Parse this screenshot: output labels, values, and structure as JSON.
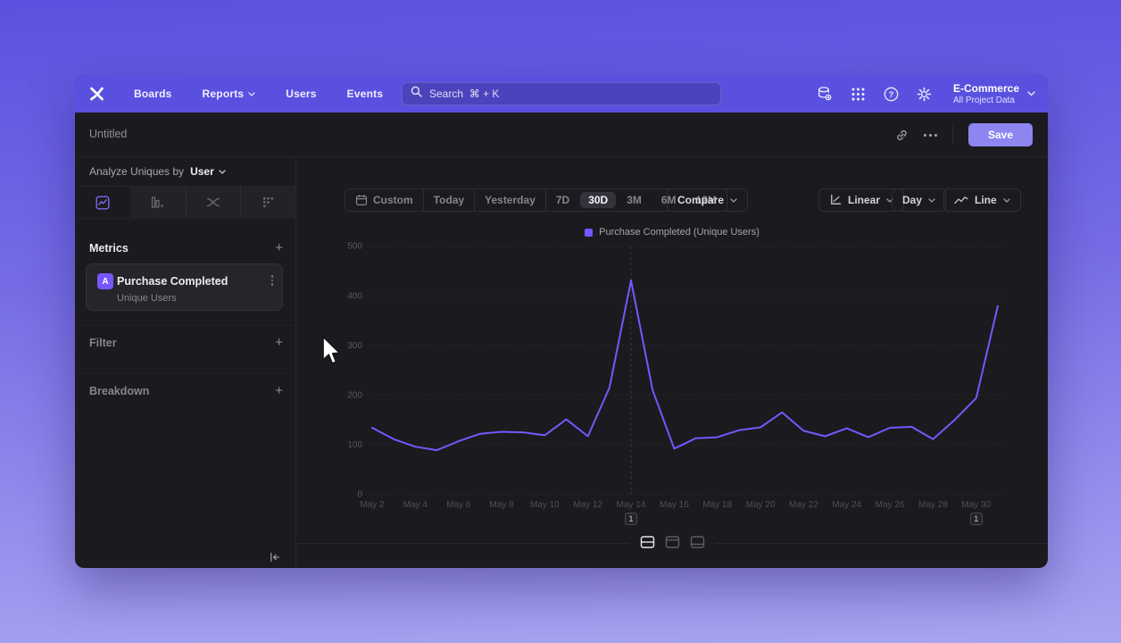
{
  "topnav": {
    "items": [
      {
        "label": "Boards",
        "chevron": false
      },
      {
        "label": "Reports",
        "chevron": true
      },
      {
        "label": "Users",
        "chevron": false
      },
      {
        "label": "Events",
        "chevron": false
      }
    ],
    "search": {
      "placeholder": "Search  ⌘ + K"
    },
    "project": {
      "name": "E-Commerce",
      "scope": "All Project Data"
    }
  },
  "titlebar": {
    "title": "Untitled",
    "save_label": "Save"
  },
  "sidebar": {
    "analyze_prefix": "Analyze Uniques by",
    "analyze_value": "User",
    "add_symbol": "+",
    "sections": {
      "metrics": "Metrics",
      "filter": "Filter",
      "breakdown": "Breakdown"
    },
    "metric_card": {
      "badge": "A",
      "event": "Purchase Completed",
      "measure": "Unique Users"
    }
  },
  "toolbar": {
    "ranges": [
      "Custom",
      "Today",
      "Yesterday",
      "7D",
      "30D",
      "3M",
      "6M",
      "12M"
    ],
    "selected_range": "30D",
    "compare_label": "Compare",
    "scale_label": "Linear",
    "interval_label": "Day",
    "chart_type_label": "Line"
  },
  "chart_data": {
    "type": "line",
    "title": "",
    "legend": [
      {
        "label": "Purchase Completed (Unique Users)",
        "color": "#7856FF"
      }
    ],
    "x": [
      "May 2",
      "May 3",
      "May 4",
      "May 5",
      "May 6",
      "May 7",
      "May 8",
      "May 9",
      "May 10",
      "May 11",
      "May 12",
      "May 13",
      "May 14",
      "May 15",
      "May 16",
      "May 17",
      "May 18",
      "May 19",
      "May 20",
      "May 21",
      "May 22",
      "May 23",
      "May 24",
      "May 25",
      "May 26",
      "May 27",
      "May 28",
      "May 29",
      "May 30",
      "May 31"
    ],
    "x_tick_every": 2,
    "series": [
      {
        "name": "Purchase Completed (Unique Users)",
        "color": "#7856FF",
        "values": [
          134,
          111,
          96,
          89,
          107,
          122,
          126,
          125,
          119,
          151,
          117,
          215,
          431,
          210,
          92,
          113,
          115,
          129,
          135,
          165,
          128,
          117,
          133,
          115,
          134,
          136,
          111,
          150,
          194,
          379
        ]
      }
    ],
    "ylim": [
      0,
      500
    ],
    "y_ticks": [
      0,
      100,
      200,
      300,
      400,
      500
    ],
    "grid": "horizontal-dashed",
    "legend_position": "top-center",
    "annotations": [
      {
        "label": "1",
        "x": "May 14",
        "show_line": true
      },
      {
        "label": "1",
        "x": "May 30",
        "show_line": false
      }
    ]
  },
  "colors": {
    "accent": "#7856FF",
    "nav": "#5A50E0",
    "save_button": "#8D85F0"
  }
}
